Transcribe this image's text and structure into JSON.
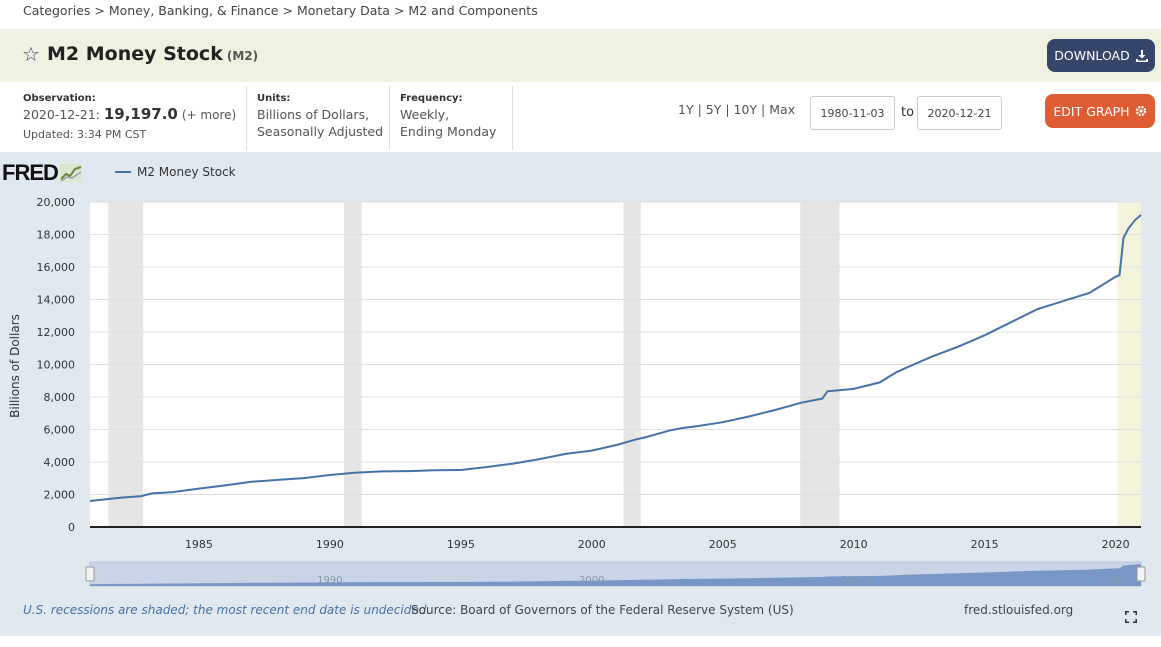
{
  "breadcrumb": [
    "Categories",
    "Money, Banking, & Finance",
    "Monetary Data",
    "M2 and Components"
  ],
  "header": {
    "title": "M2 Money Stock",
    "series_id": "(M2)",
    "download_label": "DOWNLOAD"
  },
  "observation": {
    "label": "Observation:",
    "date": "2020-12-21:",
    "value": "19,197.0",
    "more": "(+ more)",
    "updated": "Updated: 3:34 PM CST"
  },
  "units": {
    "label": "Units:",
    "line1": "Billions of Dollars,",
    "line2": "Seasonally Adjusted"
  },
  "frequency": {
    "label": "Frequency:",
    "line1": "Weekly,",
    "line2": "Ending Monday"
  },
  "ranges": [
    "1Y",
    "5Y",
    "10Y",
    "Max"
  ],
  "date_from": "1980-11-03",
  "to_label": "to",
  "date_to": "2020-12-21",
  "edit_label": "EDIT GRAPH",
  "logo": "FRED",
  "legend": "M2 Money Stock",
  "footer": {
    "note": "U.S. recessions are shaded; the most recent end date is undecided.",
    "source": "Source: Board of Governors of the Federal Reserve System (US)",
    "site": "fred.stlouisfed.org"
  },
  "colors": {
    "line": "#4572a7",
    "recession": "#e6e6e6",
    "current": "#f4f4dc",
    "panel": "#e1e9f0"
  },
  "chart_data": {
    "type": "line",
    "ylabel": "Billions of Dollars",
    "xlim": [
      1980.84,
      2020.97
    ],
    "ylim": [
      0,
      20000
    ],
    "yticks": [
      0,
      2000,
      4000,
      6000,
      8000,
      10000,
      12000,
      14000,
      16000,
      18000,
      20000
    ],
    "ytick_labels": [
      "0",
      "2,000",
      "4,000",
      "6,000",
      "8,000",
      "10,000",
      "12,000",
      "14,000",
      "16,000",
      "18,000",
      "20,000"
    ],
    "xticks": [
      1985,
      1990,
      1995,
      2000,
      2005,
      2010,
      2015,
      2020
    ],
    "xtick_labels": [
      "1985",
      "1990",
      "1995",
      "2000",
      "2005",
      "2010",
      "2015",
      "2020"
    ],
    "navigator_labels": [
      "1990",
      "2000",
      "2010",
      "20"
    ],
    "recessions": [
      [
        1981.54,
        1982.87
      ],
      [
        1990.54,
        1991.21
      ],
      [
        2001.21,
        2001.87
      ],
      [
        2007.96,
        2009.46
      ]
    ],
    "current_shade": [
      2020.08,
      2020.97
    ],
    "series": [
      {
        "name": "M2 Money Stock",
        "x": [
          1980.84,
          1981.5,
          1982.0,
          1982.8,
          1983.2,
          1984.0,
          1985.0,
          1986.0,
          1987.0,
          1988.0,
          1989.0,
          1990.0,
          1991.0,
          1992.0,
          1993.0,
          1994.0,
          1995.0,
          1996.0,
          1997.0,
          1998.0,
          1999.0,
          2000.0,
          2001.0,
          2001.7,
          2002.0,
          2003.0,
          2003.5,
          2004.0,
          2005.0,
          2006.0,
          2007.0,
          2008.0,
          2008.8,
          2009.0,
          2010.0,
          2011.0,
          2011.6,
          2012.0,
          2013.0,
          2014.0,
          2015.0,
          2016.0,
          2017.0,
          2018.0,
          2019.0,
          2020.0,
          2020.15,
          2020.3,
          2020.5,
          2020.75,
          2020.97
        ],
        "values": [
          1600,
          1720,
          1800,
          1900,
          2070,
          2150,
          2360,
          2560,
          2780,
          2900,
          3010,
          3200,
          3350,
          3420,
          3440,
          3490,
          3510,
          3690,
          3900,
          4180,
          4500,
          4700,
          5070,
          5400,
          5500,
          5950,
          6100,
          6200,
          6450,
          6800,
          7200,
          7650,
          7900,
          8350,
          8500,
          8900,
          9500,
          9800,
          10500,
          11100,
          11800,
          12600,
          13400,
          13900,
          14400,
          15400,
          15500,
          17800,
          18400,
          18900,
          19197
        ]
      }
    ]
  }
}
